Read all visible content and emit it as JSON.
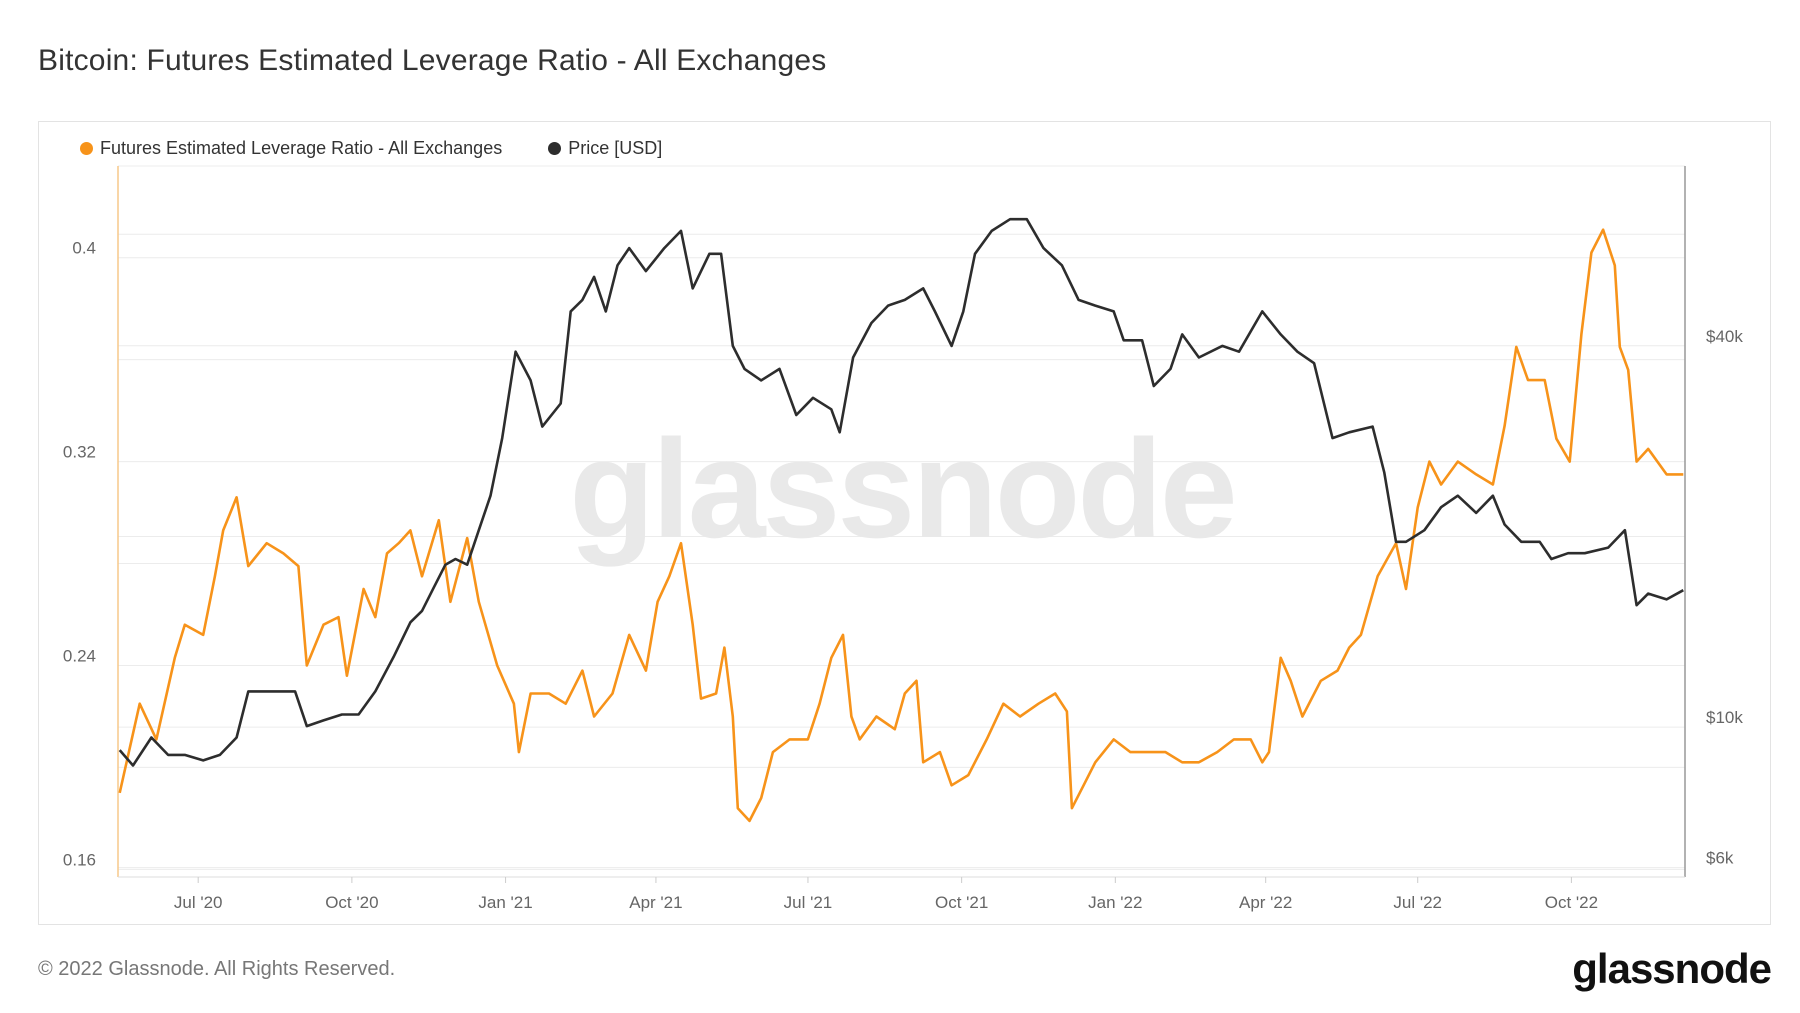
{
  "title": "Bitcoin: Futures Estimated Leverage Ratio - All Exchanges",
  "footer": "© 2022 Glassnode. All Rights Reserved.",
  "logo_text": "glassnode",
  "watermark_text": "glassnode",
  "colors": {
    "leverage": "#f7931a",
    "price": "#2d2d2d",
    "grid": "#ececec",
    "tick_text": "#666666"
  },
  "chart_data": {
    "type": "line",
    "title": "Bitcoin: Futures Estimated Leverage Ratio - All Exchanges",
    "legend_placement": "top-left",
    "grid": true,
    "xlim": [
      "2020-05-14",
      "2022-12-08"
    ],
    "x_ticks": [
      {
        "date": "2020-07-01",
        "label": "Jul '20"
      },
      {
        "date": "2020-10-01",
        "label": "Oct '20"
      },
      {
        "date": "2021-01-01",
        "label": "Jan '21"
      },
      {
        "date": "2021-04-01",
        "label": "Apr '21"
      },
      {
        "date": "2021-07-01",
        "label": "Jul '21"
      },
      {
        "date": "2021-10-01",
        "label": "Oct '21"
      },
      {
        "date": "2022-01-01",
        "label": "Jan '22"
      },
      {
        "date": "2022-04-01",
        "label": "Apr '22"
      },
      {
        "date": "2022-07-01",
        "label": "Jul '22"
      },
      {
        "date": "2022-10-01",
        "label": "Oct '22"
      }
    ],
    "y_left": {
      "scale": "linear",
      "ylim": [
        0.157,
        0.436
      ],
      "ticks": [
        {
          "v": 0.16,
          "label": "0.16"
        },
        {
          "v": 0.24,
          "label": "0.24"
        },
        {
          "v": 0.32,
          "label": "0.32"
        },
        {
          "v": 0.4,
          "label": "0.4"
        }
      ]
    },
    "y_right": {
      "scale": "log",
      "ylim": [
        5800,
        76900
      ],
      "ticks": [
        {
          "v": 6000,
          "label": "$6k"
        },
        {
          "v": 10000,
          "label": "$10k"
        },
        {
          "v": 40000,
          "label": "$40k"
        }
      ]
    },
    "series": [
      {
        "name": "Futures Estimated Leverage Ratio - All Exchanges",
        "axis": "left",
        "color": "#f7931a",
        "points": [
          [
            "2020-05-15",
            0.19
          ],
          [
            "2020-05-27",
            0.225
          ],
          [
            "2020-06-06",
            0.211
          ],
          [
            "2020-06-17",
            0.243
          ],
          [
            "2020-06-23",
            0.256
          ],
          [
            "2020-07-04",
            0.252
          ],
          [
            "2020-07-11",
            0.275
          ],
          [
            "2020-07-16",
            0.293
          ],
          [
            "2020-07-24",
            0.306
          ],
          [
            "2020-07-31",
            0.279
          ],
          [
            "2020-08-11",
            0.288
          ],
          [
            "2020-08-21",
            0.284
          ],
          [
            "2020-08-30",
            0.279
          ],
          [
            "2020-09-04",
            0.24
          ],
          [
            "2020-09-14",
            0.256
          ],
          [
            "2020-09-23",
            0.259
          ],
          [
            "2020-09-28",
            0.236
          ],
          [
            "2020-10-08",
            0.27
          ],
          [
            "2020-10-15",
            0.259
          ],
          [
            "2020-10-22",
            0.284
          ],
          [
            "2020-10-29",
            0.288
          ],
          [
            "2020-11-05",
            0.293
          ],
          [
            "2020-11-12",
            0.275
          ],
          [
            "2020-11-22",
            0.297
          ],
          [
            "2020-11-29",
            0.265
          ],
          [
            "2020-12-09",
            0.29
          ],
          [
            "2020-12-16",
            0.265
          ],
          [
            "2020-12-27",
            0.24
          ],
          [
            "2021-01-06",
            0.225
          ],
          [
            "2021-01-09",
            0.206
          ],
          [
            "2021-01-16",
            0.229
          ],
          [
            "2021-01-27",
            0.229
          ],
          [
            "2021-02-06",
            0.225
          ],
          [
            "2021-02-16",
            0.238
          ],
          [
            "2021-02-23",
            0.22
          ],
          [
            "2021-03-06",
            0.229
          ],
          [
            "2021-03-16",
            0.252
          ],
          [
            "2021-03-26",
            0.238
          ],
          [
            "2021-04-02",
            0.265
          ],
          [
            "2021-04-09",
            0.275
          ],
          [
            "2021-04-16",
            0.288
          ],
          [
            "2021-04-23",
            0.256
          ],
          [
            "2021-04-28",
            0.227
          ],
          [
            "2021-05-07",
            0.229
          ],
          [
            "2021-05-12",
            0.247
          ],
          [
            "2021-05-17",
            0.22
          ],
          [
            "2021-05-20",
            0.184
          ],
          [
            "2021-05-27",
            0.179
          ],
          [
            "2021-06-03",
            0.188
          ],
          [
            "2021-06-10",
            0.206
          ],
          [
            "2021-06-20",
            0.211
          ],
          [
            "2021-07-01",
            0.211
          ],
          [
            "2021-07-08",
            0.225
          ],
          [
            "2021-07-15",
            0.243
          ],
          [
            "2021-07-22",
            0.252
          ],
          [
            "2021-07-27",
            0.22
          ],
          [
            "2021-08-01",
            0.211
          ],
          [
            "2021-08-11",
            0.22
          ],
          [
            "2021-08-22",
            0.215
          ],
          [
            "2021-08-28",
            0.229
          ],
          [
            "2021-09-04",
            0.234
          ],
          [
            "2021-09-08",
            0.202
          ],
          [
            "2021-09-18",
            0.206
          ],
          [
            "2021-09-25",
            0.193
          ],
          [
            "2021-10-05",
            0.197
          ],
          [
            "2021-10-16",
            0.211
          ],
          [
            "2021-10-26",
            0.225
          ],
          [
            "2021-11-05",
            0.22
          ],
          [
            "2021-11-16",
            0.225
          ],
          [
            "2021-11-26",
            0.229
          ],
          [
            "2021-12-03",
            0.222
          ],
          [
            "2021-12-06",
            0.184
          ],
          [
            "2021-12-13",
            0.193
          ],
          [
            "2021-12-20",
            0.202
          ],
          [
            "2021-12-31",
            0.211
          ],
          [
            "2022-01-10",
            0.206
          ],
          [
            "2022-01-20",
            0.206
          ],
          [
            "2022-01-31",
            0.206
          ],
          [
            "2022-02-10",
            0.202
          ],
          [
            "2022-02-20",
            0.202
          ],
          [
            "2022-03-03",
            0.206
          ],
          [
            "2022-03-13",
            0.211
          ],
          [
            "2022-03-23",
            0.211
          ],
          [
            "2022-03-30",
            0.202
          ],
          [
            "2022-04-03",
            0.206
          ],
          [
            "2022-04-10",
            0.243
          ],
          [
            "2022-04-16",
            0.234
          ],
          [
            "2022-04-23",
            0.22
          ],
          [
            "2022-05-04",
            0.234
          ],
          [
            "2022-05-14",
            0.238
          ],
          [
            "2022-05-21",
            0.247
          ],
          [
            "2022-05-28",
            0.252
          ],
          [
            "2022-06-07",
            0.275
          ],
          [
            "2022-06-18",
            0.288
          ],
          [
            "2022-06-24",
            0.27
          ],
          [
            "2022-07-01",
            0.302
          ],
          [
            "2022-07-08",
            0.32
          ],
          [
            "2022-07-15",
            0.311
          ],
          [
            "2022-07-25",
            0.32
          ],
          [
            "2022-08-05",
            0.315
          ],
          [
            "2022-08-15",
            0.311
          ],
          [
            "2022-08-22",
            0.334
          ],
          [
            "2022-08-29",
            0.365
          ],
          [
            "2022-09-05",
            0.352
          ],
          [
            "2022-09-15",
            0.352
          ],
          [
            "2022-09-22",
            0.329
          ],
          [
            "2022-09-30",
            0.32
          ],
          [
            "2022-10-07",
            0.37
          ],
          [
            "2022-10-13",
            0.402
          ],
          [
            "2022-10-20",
            0.411
          ],
          [
            "2022-10-27",
            0.397
          ],
          [
            "2022-10-30",
            0.365
          ],
          [
            "2022-11-04",
            0.356
          ],
          [
            "2022-11-09",
            0.32
          ],
          [
            "2022-11-16",
            0.325
          ],
          [
            "2022-11-27",
            0.315
          ],
          [
            "2022-12-07",
            0.315
          ]
        ]
      },
      {
        "name": "Price [USD]",
        "axis": "right",
        "color": "#2d2d2d",
        "points": [
          [
            "2020-05-15",
            9200
          ],
          [
            "2020-05-23",
            8700
          ],
          [
            "2020-06-03",
            9630
          ],
          [
            "2020-06-13",
            9040
          ],
          [
            "2020-06-23",
            9040
          ],
          [
            "2020-07-04",
            8860
          ],
          [
            "2020-07-14",
            9040
          ],
          [
            "2020-07-24",
            9630
          ],
          [
            "2020-07-31",
            11390
          ],
          [
            "2020-08-11",
            11390
          ],
          [
            "2020-08-21",
            11390
          ],
          [
            "2020-08-28",
            11390
          ],
          [
            "2020-09-04",
            10040
          ],
          [
            "2020-09-14",
            10250
          ],
          [
            "2020-09-25",
            10470
          ],
          [
            "2020-10-05",
            10470
          ],
          [
            "2020-10-15",
            11390
          ],
          [
            "2020-10-26",
            12910
          ],
          [
            "2020-11-05",
            14640
          ],
          [
            "2020-11-12",
            15260
          ],
          [
            "2020-11-19",
            16600
          ],
          [
            "2020-11-26",
            18050
          ],
          [
            "2020-12-02",
            18430
          ],
          [
            "2020-12-09",
            18050
          ],
          [
            "2020-12-16",
            20460
          ],
          [
            "2020-12-23",
            23200
          ],
          [
            "2020-12-30",
            28600
          ],
          [
            "2021-01-07",
            39150
          ],
          [
            "2021-01-16",
            35270
          ],
          [
            "2021-01-23",
            29820
          ],
          [
            "2021-02-03",
            32430
          ],
          [
            "2021-02-09",
            45330
          ],
          [
            "2021-02-16",
            47270
          ],
          [
            "2021-02-23",
            51390
          ],
          [
            "2021-03-02",
            45330
          ],
          [
            "2021-03-09",
            53600
          ],
          [
            "2021-03-16",
            57060
          ],
          [
            "2021-03-26",
            52480
          ],
          [
            "2021-04-06",
            57060
          ],
          [
            "2021-04-16",
            60740
          ],
          [
            "2021-04-23",
            49290
          ],
          [
            "2021-05-03",
            55880
          ],
          [
            "2021-05-10",
            55880
          ],
          [
            "2021-05-17",
            39980
          ],
          [
            "2021-05-24",
            36780
          ],
          [
            "2021-06-03",
            35270
          ],
          [
            "2021-06-14",
            36780
          ],
          [
            "2021-06-24",
            31100
          ],
          [
            "2021-07-04",
            33110
          ],
          [
            "2021-07-15",
            31760
          ],
          [
            "2021-07-20",
            29210
          ],
          [
            "2021-07-28",
            38330
          ],
          [
            "2021-08-08",
            43460
          ],
          [
            "2021-08-18",
            46300
          ],
          [
            "2021-08-28",
            47270
          ],
          [
            "2021-09-08",
            49290
          ],
          [
            "2021-09-15",
            45330
          ],
          [
            "2021-09-25",
            39980
          ],
          [
            "2021-10-02",
            45330
          ],
          [
            "2021-10-09",
            55880
          ],
          [
            "2021-10-19",
            60740
          ],
          [
            "2021-10-30",
            63370
          ],
          [
            "2021-11-09",
            63370
          ],
          [
            "2021-11-19",
            57060
          ],
          [
            "2021-11-30",
            53600
          ],
          [
            "2021-12-10",
            47270
          ],
          [
            "2021-12-20",
            46300
          ],
          [
            "2021-12-31",
            45330
          ],
          [
            "2022-01-06",
            40810
          ],
          [
            "2022-01-17",
            40810
          ],
          [
            "2022-01-24",
            34560
          ],
          [
            "2022-02-03",
            36780
          ],
          [
            "2022-02-10",
            41690
          ],
          [
            "2022-02-20",
            38330
          ],
          [
            "2022-03-06",
            39980
          ],
          [
            "2022-03-16",
            39150
          ],
          [
            "2022-03-30",
            45330
          ],
          [
            "2022-04-10",
            41690
          ],
          [
            "2022-04-20",
            39150
          ],
          [
            "2022-04-30",
            37550
          ],
          [
            "2022-05-11",
            28600
          ],
          [
            "2022-05-21",
            29210
          ],
          [
            "2022-06-04",
            29820
          ],
          [
            "2022-06-11",
            25230
          ],
          [
            "2022-06-18",
            19620
          ],
          [
            "2022-06-24",
            19620
          ],
          [
            "2022-07-05",
            20460
          ],
          [
            "2022-07-15",
            22250
          ],
          [
            "2022-07-25",
            23200
          ],
          [
            "2022-08-05",
            21790
          ],
          [
            "2022-08-15",
            23200
          ],
          [
            "2022-08-22",
            20890
          ],
          [
            "2022-09-01",
            19620
          ],
          [
            "2022-09-12",
            19620
          ],
          [
            "2022-09-19",
            18430
          ],
          [
            "2022-09-29",
            18820
          ],
          [
            "2022-10-09",
            18820
          ],
          [
            "2022-10-23",
            19210
          ],
          [
            "2022-11-02",
            20460
          ],
          [
            "2022-11-09",
            15580
          ],
          [
            "2022-11-16",
            16250
          ],
          [
            "2022-11-27",
            15910
          ],
          [
            "2022-12-07",
            16450
          ]
        ]
      }
    ]
  }
}
